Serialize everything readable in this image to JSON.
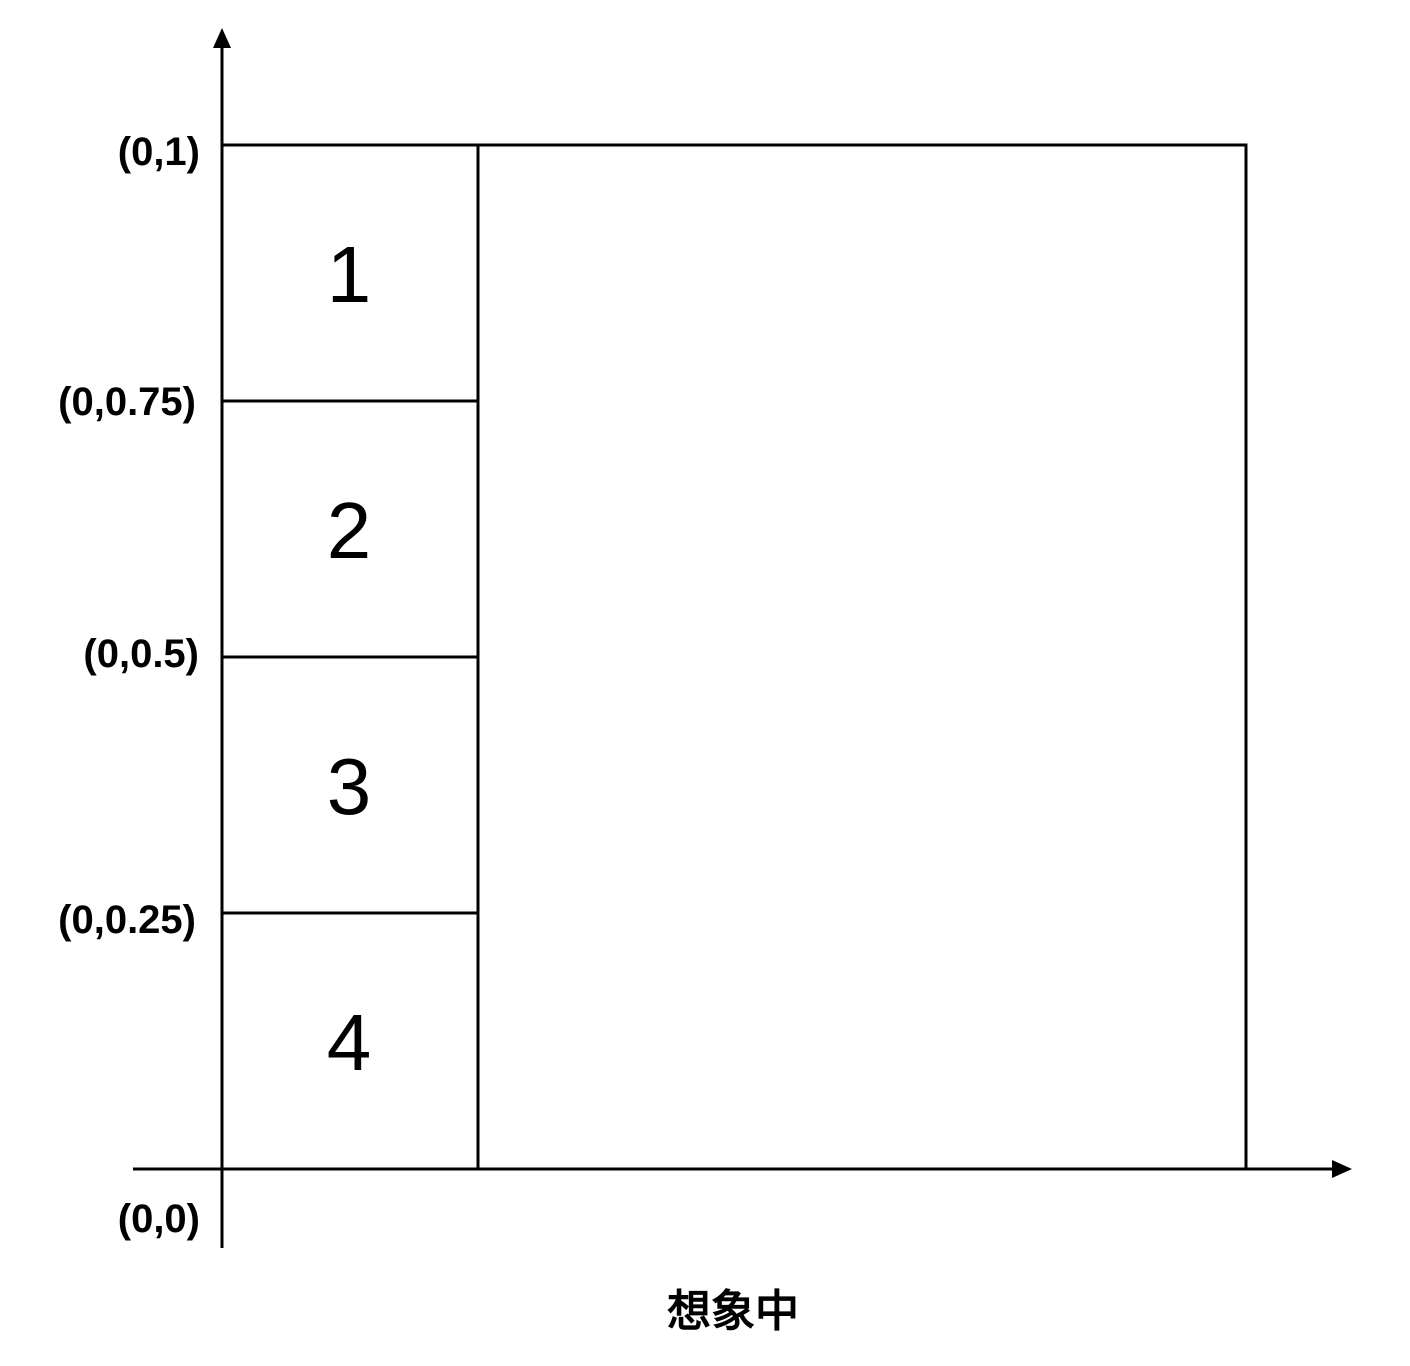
{
  "diagram": {
    "y_axis_labels": [
      "(0,1)",
      "(0,0.75)",
      "(0,0.5)",
      "(0,0.25)",
      "(0,0)"
    ],
    "cells": [
      "1",
      "2",
      "3",
      "4"
    ],
    "caption": "想象中"
  }
}
